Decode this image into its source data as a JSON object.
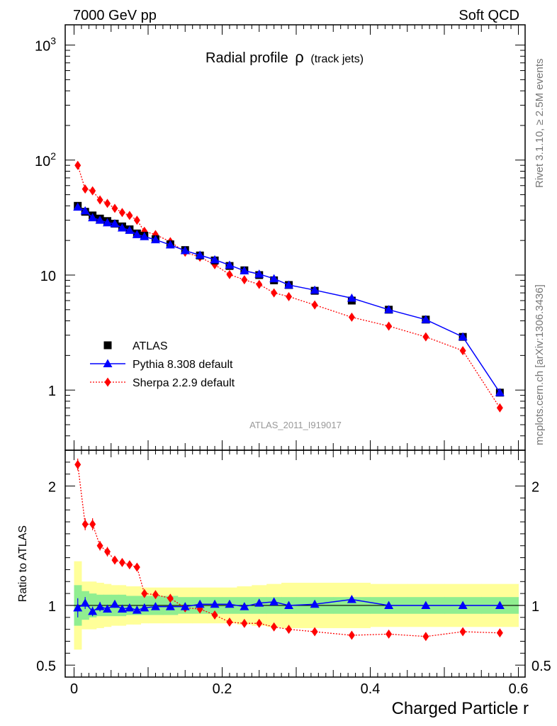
{
  "header": {
    "left": "7000 GeV pp",
    "right": "Soft QCD"
  },
  "side_labels": {
    "top": "Rivet 3.1.10, ≥ 2.5M events",
    "bottom": "mcplots.cern.ch [arXiv:1306.3436]"
  },
  "analysis_ref": "ATLAS_2011_I919017",
  "colors": {
    "atlas": "#000000",
    "pythia": "#0000ff",
    "sherpa": "#ff0000",
    "band_outer": "#ffff99",
    "band_inner": "#90ee90"
  },
  "chart_data": [
    {
      "type": "scatter",
      "title": "Radial profile",
      "title_symbol": "ρ",
      "title_suffix": "(track jets)",
      "xlabel": "Charged Particle r",
      "ylabel": "",
      "yscale": "log",
      "ylim": [
        0.3,
        1500
      ],
      "xlim": [
        -0.01,
        0.6
      ],
      "yticks": [
        {
          "value": 1,
          "label": "1"
        },
        {
          "value": 10,
          "label": "10"
        },
        {
          "value": 100,
          "label": "10",
          "sup": "2"
        },
        {
          "value": 1000,
          "label": "10",
          "sup": "3"
        }
      ],
      "legend": {
        "placement": "lower-left",
        "entries": [
          "ATLAS",
          "Pythia 8.308 default",
          "Sherpa 2.2.9 default"
        ]
      },
      "x": [
        0.005,
        0.015,
        0.025,
        0.035,
        0.045,
        0.055,
        0.065,
        0.075,
        0.085,
        0.095,
        0.11,
        0.13,
        0.15,
        0.17,
        0.19,
        0.21,
        0.23,
        0.25,
        0.27,
        0.29,
        0.325,
        0.375,
        0.425,
        0.475,
        0.525,
        0.575
      ],
      "series": [
        {
          "name": "ATLAS",
          "marker": "square",
          "values": [
            40,
            35.5,
            33,
            31,
            29.5,
            28,
            26.5,
            25,
            23,
            22,
            20.5,
            18.5,
            16.5,
            14.8,
            13.4,
            12,
            11,
            10,
            9,
            8.2,
            7.3,
            6,
            5,
            4.1,
            2.9,
            0.95
          ]
        },
        {
          "name": "Pythia 8.308 default",
          "marker": "triangle",
          "line": "solid",
          "values": [
            39,
            36.2,
            31.5,
            30,
            28.5,
            28,
            25.7,
            24.5,
            22.5,
            21.6,
            20.3,
            18.3,
            16.3,
            14.9,
            13.6,
            12.2,
            10.9,
            10.2,
            9.3,
            8.2,
            7.4,
            6.3,
            5,
            4.1,
            2.9,
            0.95
          ]
        },
        {
          "name": "Sherpa 2.2.9 default",
          "marker": "diamond",
          "line": "dotted",
          "values": [
            90,
            56,
            54,
            45,
            42,
            38,
            35,
            33,
            30,
            24,
            22.5,
            19.5,
            15.8,
            14.3,
            12.3,
            10.1,
            9.1,
            8.3,
            7,
            6.5,
            5.5,
            4.3,
            3.6,
            2.9,
            2.2,
            0.7
          ]
        }
      ]
    },
    {
      "type": "scatter",
      "title": "",
      "xlabel": "Charged Particle r",
      "ylabel": "Ratio to ATLAS",
      "ylim": [
        0.4,
        2.3
      ],
      "xlim": [
        -0.01,
        0.6
      ],
      "yticks": [
        {
          "value": 0.5,
          "label": "0.5"
        },
        {
          "value": 1,
          "label": "1"
        },
        {
          "value": 2,
          "label": "2"
        }
      ],
      "xticks": [
        {
          "value": 0,
          "label": "0"
        },
        {
          "value": 0.2,
          "label": "0.2"
        },
        {
          "value": 0.4,
          "label": "0.4"
        },
        {
          "value": 0.6,
          "label": "0.6"
        }
      ],
      "x": [
        0.005,
        0.015,
        0.025,
        0.035,
        0.045,
        0.055,
        0.065,
        0.075,
        0.085,
        0.095,
        0.11,
        0.13,
        0.15,
        0.17,
        0.19,
        0.21,
        0.23,
        0.25,
        0.27,
        0.29,
        0.325,
        0.375,
        0.425,
        0.475,
        0.525,
        0.575
      ],
      "bins": [
        0,
        0.01,
        0.02,
        0.03,
        0.04,
        0.05,
        0.06,
        0.07,
        0.08,
        0.09,
        0.1,
        0.12,
        0.14,
        0.16,
        0.18,
        0.2,
        0.22,
        0.24,
        0.26,
        0.28,
        0.3,
        0.35,
        0.4,
        0.45,
        0.5,
        0.55,
        0.6
      ],
      "uncertainty_inner": [
        0.17,
        0.12,
        0.1,
        0.09,
        0.09,
        0.09,
        0.09,
        0.08,
        0.08,
        0.08,
        0.08,
        0.08,
        0.07,
        0.07,
        0.07,
        0.07,
        0.07,
        0.07,
        0.07,
        0.07,
        0.07,
        0.07,
        0.07,
        0.07,
        0.07,
        0.07
      ],
      "uncertainty_outer": [
        0.37,
        0.2,
        0.2,
        0.19,
        0.18,
        0.17,
        0.17,
        0.16,
        0.16,
        0.15,
        0.15,
        0.15,
        0.15,
        0.15,
        0.15,
        0.15,
        0.16,
        0.17,
        0.18,
        0.19,
        0.19,
        0.19,
        0.18,
        0.18,
        0.18,
        0.18
      ],
      "series": [
        {
          "name": "Pythia 8.308 default",
          "marker": "triangle",
          "line": "solid",
          "values": [
            0.98,
            1.02,
            0.95,
            0.99,
            0.97,
            1.01,
            0.97,
            0.98,
            0.96,
            0.98,
            0.99,
            0.99,
            0.99,
            1.01,
            1.01,
            1.01,
            0.99,
            1.02,
            1.03,
            1.0,
            1.01,
            1.05,
            1.0,
            1.0,
            1.0,
            1.0
          ],
          "errors": [
            0.08,
            0.05,
            0.04,
            0.04,
            0.03,
            0.03,
            0.02,
            0.02,
            0.02,
            0.02,
            0.02,
            0.02,
            0.02,
            0.02,
            0.02,
            0.02,
            0.02,
            0.02,
            0.02,
            0.02,
            0.02,
            0.02,
            0.02,
            0.02,
            0.02,
            0.02
          ]
        },
        {
          "name": "Sherpa 2.2.9 default",
          "marker": "diamond",
          "line": "dotted",
          "values": [
            2.18,
            1.68,
            1.68,
            1.5,
            1.45,
            1.38,
            1.36,
            1.34,
            1.32,
            1.1,
            1.09,
            1.06,
            0.98,
            0.97,
            0.92,
            0.86,
            0.85,
            0.85,
            0.82,
            0.8,
            0.78,
            0.75,
            0.76,
            0.74,
            0.78,
            0.77
          ],
          "errors": [
            0.05,
            0.05,
            0.05,
            0.04,
            0.04,
            0.03,
            0.03,
            0.03,
            0.03,
            0.03,
            0.02,
            0.02,
            0.02,
            0.02,
            0.02,
            0.02,
            0.02,
            0.02,
            0.02,
            0.02,
            0.02,
            0.02,
            0.02,
            0.02,
            0.02,
            0.03
          ]
        }
      ]
    }
  ]
}
